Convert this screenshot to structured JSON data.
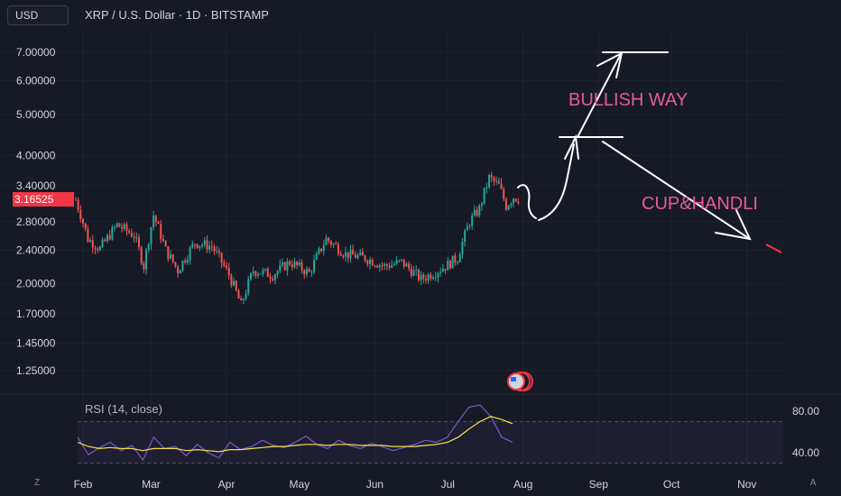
{
  "header": {
    "currency_button": "USD",
    "symbol_title": "XRP / U.S. Dollar · 1D · BITSTAMP"
  },
  "price_tag": {
    "value": "3.16525",
    "color": "#f23645"
  },
  "annotations": {
    "bullish": "BULLISH WAY",
    "cup": "CUP&HANDLI"
  },
  "rsi": {
    "label": "RSI (14, close)"
  },
  "corner_buttons": {
    "left": "Z",
    "right": "A"
  },
  "colors": {
    "up": "#26a69a",
    "down": "#ef5350",
    "rsi_line": "#7e57c2",
    "rsi_ma": "#f7e04a",
    "background": "#161a25"
  },
  "chart_data": [
    {
      "type": "candlestick",
      "title": "XRP / U.S. Dollar · 1D · BITSTAMP",
      "y_scale": "log",
      "y_ticks": [
        7.0,
        6.0,
        5.0,
        4.0,
        3.4,
        2.8,
        2.4,
        2.0,
        1.7,
        1.45,
        1.25
      ],
      "y_tick_labels": [
        "7.00000",
        "6.00000",
        "5.00000",
        "4.00000",
        "3.40000",
        "2.80000",
        "2.40000",
        "2.00000",
        "1.70000",
        "1.45000",
        "1.25000"
      ],
      "x_tick_labels": [
        "Feb",
        "Mar",
        "Apr",
        "May",
        "Jun",
        "Jul",
        "Aug",
        "Sep",
        "Oct",
        "Nov"
      ],
      "close_path_anchors": [
        {
          "x": "2025-01-29",
          "y": 3.15
        },
        {
          "x": "2025-02-03",
          "y": 2.55
        },
        {
          "x": "2025-02-08",
          "y": 2.42
        },
        {
          "x": "2025-02-15",
          "y": 2.75
        },
        {
          "x": "2025-02-22",
          "y": 2.6
        },
        {
          "x": "2025-02-26",
          "y": 2.2
        },
        {
          "x": "2025-03-02",
          "y": 2.9
        },
        {
          "x": "2025-03-07",
          "y": 2.4
        },
        {
          "x": "2025-03-12",
          "y": 2.15
        },
        {
          "x": "2025-03-19",
          "y": 2.5
        },
        {
          "x": "2025-03-26",
          "y": 2.45
        },
        {
          "x": "2025-04-02",
          "y": 2.1
        },
        {
          "x": "2025-04-07",
          "y": 1.78
        },
        {
          "x": "2025-04-12",
          "y": 2.15
        },
        {
          "x": "2025-04-20",
          "y": 2.1
        },
        {
          "x": "2025-04-27",
          "y": 2.25
        },
        {
          "x": "2025-05-05",
          "y": 2.12
        },
        {
          "x": "2025-05-12",
          "y": 2.55
        },
        {
          "x": "2025-05-20",
          "y": 2.35
        },
        {
          "x": "2025-05-28",
          "y": 2.3
        },
        {
          "x": "2025-06-05",
          "y": 2.2
        },
        {
          "x": "2025-06-12",
          "y": 2.25
        },
        {
          "x": "2025-06-20",
          "y": 2.05
        },
        {
          "x": "2025-06-25",
          "y": 2.12
        },
        {
          "x": "2025-06-30",
          "y": 2.2
        },
        {
          "x": "2025-07-05",
          "y": 2.3
        },
        {
          "x": "2025-07-10",
          "y": 2.8
        },
        {
          "x": "2025-07-14",
          "y": 3.0
        },
        {
          "x": "2025-07-18",
          "y": 3.55
        },
        {
          "x": "2025-07-22",
          "y": 3.4
        },
        {
          "x": "2025-07-25",
          "y": 3.05
        },
        {
          "x": "2025-07-28",
          "y": 3.2
        },
        {
          "x": "2025-07-30",
          "y": 3.17
        }
      ],
      "last_price": 3.16525
    },
    {
      "type": "line",
      "title": "RSI (14, close)",
      "y_ticks": [
        80,
        40
      ],
      "y_tick_labels": [
        "80.00",
        "40.00"
      ],
      "band": [
        70,
        30
      ],
      "series": [
        {
          "values": [
            55,
            38,
            45,
            50,
            42,
            47,
            33,
            55,
            44,
            46,
            37,
            48,
            40,
            35,
            50,
            43,
            46,
            52,
            47,
            45,
            50,
            56,
            48,
            44,
            52,
            47,
            44,
            49,
            46,
            42,
            45,
            48,
            52,
            50,
            55,
            70,
            84,
            86,
            75,
            55,
            50
          ]
        },
        {
          "values": [
            50,
            46,
            44,
            45,
            44,
            44,
            42,
            44,
            44,
            44,
            42,
            43,
            42,
            41,
            43,
            43,
            44,
            45,
            46,
            46,
            47,
            48,
            48,
            47,
            48,
            48,
            47,
            47,
            47,
            46,
            46,
            46,
            47,
            48,
            50,
            55,
            63,
            70,
            75,
            72,
            68
          ]
        }
      ]
    }
  ]
}
